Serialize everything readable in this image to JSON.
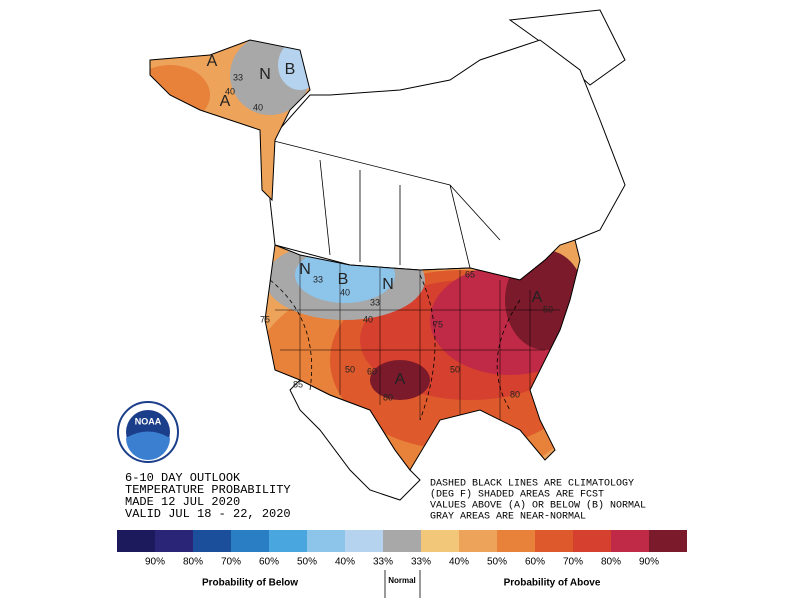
{
  "header": {
    "lines": [
      "6-10 DAY OUTLOOK",
      "TEMPERATURE PROBABILITY",
      "MADE  12 JUL 2020",
      "VALID  JUL 18 - 22, 2020"
    ]
  },
  "logo": {
    "text": "NOAA"
  },
  "note": {
    "lines": [
      "DASHED BLACK LINES ARE CLIMATOLOGY",
      "(DEG F) SHADED AREAS ARE FCST",
      "VALUES ABOVE (A) OR BELOW (B) NORMAL",
      "GRAY AREAS ARE NEAR-NORMAL"
    ]
  },
  "map": {
    "labels": [
      "A",
      "N",
      "B",
      "N",
      "B",
      "N",
      "A",
      "A",
      "A"
    ],
    "contours": [
      "33",
      "40",
      "40",
      "33",
      "40",
      "33",
      "40",
      "75",
      "50",
      "60",
      "80",
      "50",
      "75",
      "85",
      "50",
      "80",
      "65"
    ]
  },
  "legend": {
    "below_title": "Probability of Below",
    "normal_title": "Normal",
    "above_title": "Probability of Above",
    "cells": [
      {
        "label": "90%",
        "color": "#1c1a5c"
      },
      {
        "label": "80%",
        "color": "#2b2577"
      },
      {
        "label": "70%",
        "color": "#1b4f9c"
      },
      {
        "label": "60%",
        "color": "#2a7fc4"
      },
      {
        "label": "50%",
        "color": "#4aa6df"
      },
      {
        "label": "40%",
        "color": "#8cc4ea"
      },
      {
        "label": "33%",
        "color": "#b5d3ef"
      },
      {
        "label": "33%",
        "color": "#f2c77a"
      },
      {
        "label": "40%",
        "color": "#eda35a"
      },
      {
        "label": "50%",
        "color": "#e8813a"
      },
      {
        "label": "60%",
        "color": "#de5a2c"
      },
      {
        "label": "70%",
        "color": "#d6402e"
      },
      {
        "label": "80%",
        "color": "#c02a46"
      },
      {
        "label": "90%",
        "color": "#7a1a2a"
      }
    ],
    "normal_color": "#a8a8a8"
  }
}
